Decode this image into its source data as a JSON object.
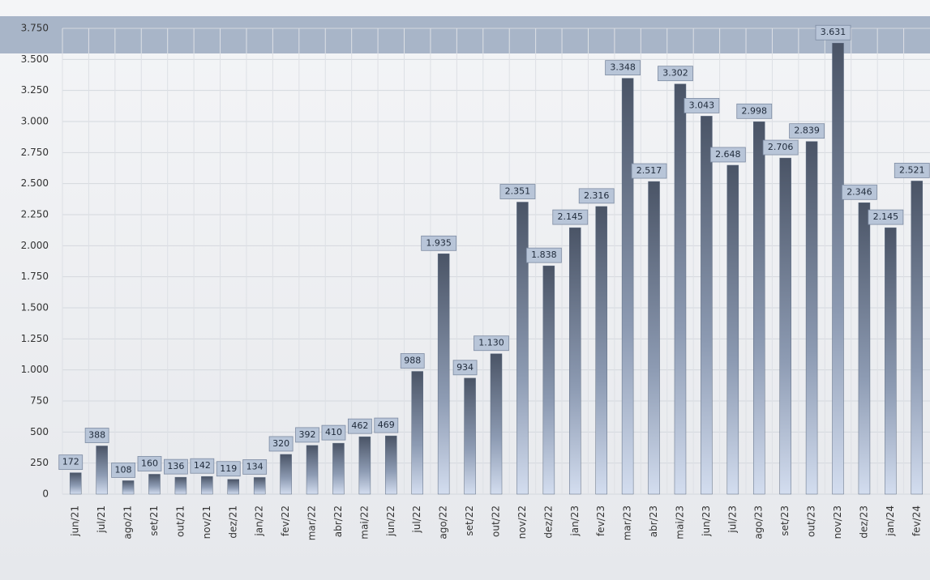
{
  "chart_data": {
    "type": "bar",
    "categories": [
      "jun/21",
      "jul/21",
      "ago/21",
      "set/21",
      "out/21",
      "nov/21",
      "dez/21",
      "jan/22",
      "fev/22",
      "mar/22",
      "abr/22",
      "mai/22",
      "jun/22",
      "jul/22",
      "ago/22",
      "set/22",
      "out/22",
      "nov/22",
      "dez/22",
      "jan/23",
      "fev/23",
      "mar/23",
      "abr/23",
      "mai/23",
      "jun/23",
      "jul/23",
      "ago/23",
      "set/23",
      "out/23",
      "nov/23",
      "dez/23",
      "jan/24",
      "fev/24"
    ],
    "values": [
      172,
      388,
      108,
      160,
      136,
      142,
      119,
      134,
      320,
      392,
      410,
      462,
      469,
      988,
      1935,
      934,
      1130,
      2351,
      1838,
      2145,
      2316,
      3348,
      2517,
      3302,
      3043,
      2648,
      2998,
      2706,
      2839,
      3631,
      2346,
      2145,
      2521
    ],
    "value_labels": [
      "172",
      "388",
      "108",
      "160",
      "136",
      "142",
      "119",
      "134",
      "320",
      "392",
      "410",
      "462",
      "469",
      "988",
      "1.935",
      "934",
      "1.130",
      "2.351",
      "1.838",
      "2.145",
      "2.316",
      "3.348",
      "2.517",
      "3.302",
      "3.043",
      "2.648",
      "2.998",
      "2.706",
      "2.839",
      "3.631",
      "2.346",
      "2.145",
      "2.521"
    ],
    "color": "#5b6a80",
    "ylim": [
      0,
      3750
    ],
    "yticks": [
      0,
      250,
      500,
      750,
      {
        "value": 1000,
        "label": "1.000"
      },
      {
        "value": 1250,
        "label": "1.250"
      },
      {
        "value": 1500,
        "label": "1.500"
      },
      {
        "value": 1750,
        "label": "1.750"
      },
      {
        "value": 2000,
        "label": "2.000"
      },
      {
        "value": 2250,
        "label": "2.250"
      },
      {
        "value": 2500,
        "label": "2.500"
      },
      {
        "value": 2750,
        "label": "2.750"
      },
      {
        "value": 3000,
        "label": "3.000"
      },
      {
        "value": 3250,
        "label": "3.250"
      },
      {
        "value": 3500,
        "label": "3.500"
      },
      {
        "value": 3750,
        "label": "3.750"
      }
    ],
    "grid": true
  }
}
